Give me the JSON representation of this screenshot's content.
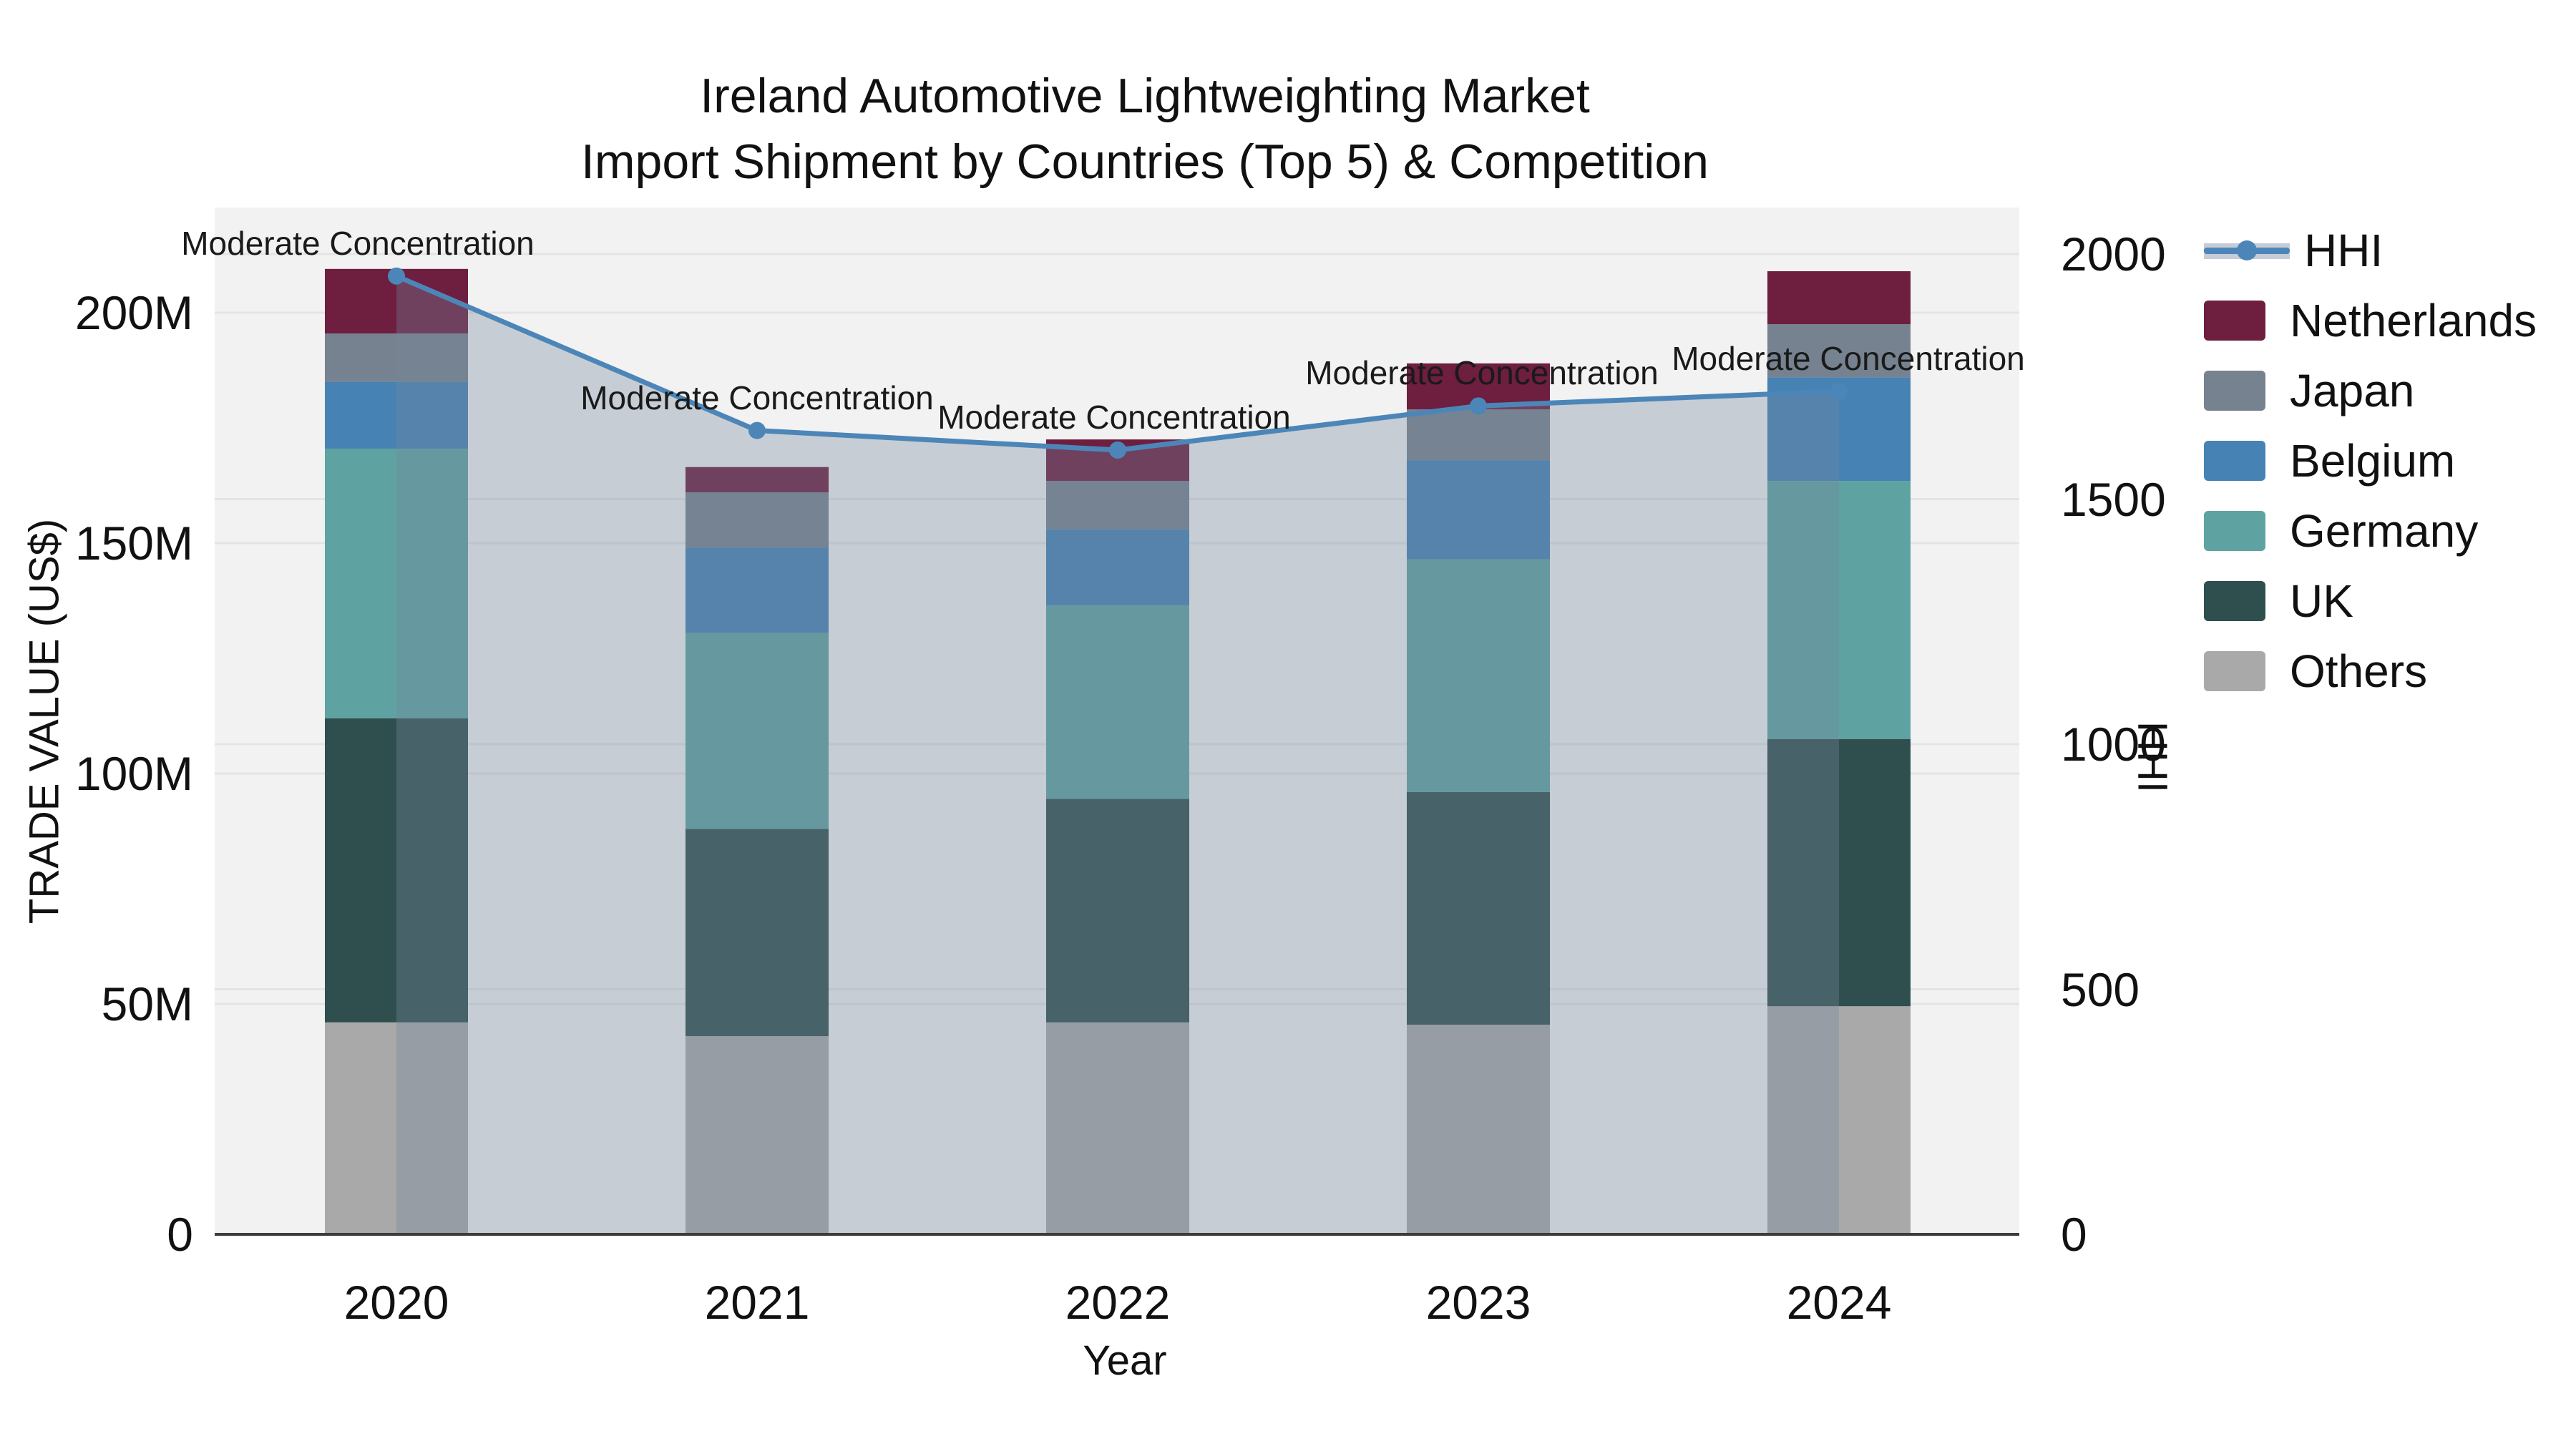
{
  "title": {
    "line1": "Ireland Automotive Lightweighting Market",
    "line2": "Import Shipment by Countries (Top 5) & Competition (HHI)"
  },
  "axes": {
    "left": {
      "label": "TRADE VALUE (US$)",
      "ticks": [
        "0",
        "50M",
        "100M",
        "150M",
        "200M"
      ],
      "tick_values": [
        0,
        50,
        100,
        150,
        200
      ]
    },
    "right": {
      "label": "HHI",
      "ticks": [
        "0",
        "500",
        "1000",
        "1500",
        "2000"
      ],
      "tick_values": [
        0,
        500,
        1000,
        1500,
        2000
      ]
    },
    "x": {
      "label": "Year",
      "ticks": [
        "2020",
        "2021",
        "2022",
        "2023",
        "2024"
      ]
    }
  },
  "legend": {
    "items": [
      {
        "label": "HHI",
        "type": "line",
        "color": "#4c86b8"
      },
      {
        "label": "Netherlands",
        "type": "patch",
        "color": "#6e1e3f"
      },
      {
        "label": "Japan",
        "type": "patch",
        "color": "#76828f"
      },
      {
        "label": "Belgium",
        "type": "patch",
        "color": "#4682b4"
      },
      {
        "label": "Germany",
        "type": "patch",
        "color": "#5ea3a2"
      },
      {
        "label": "UK",
        "type": "patch",
        "color": "#2f4f4f"
      },
      {
        "label": "Others",
        "type": "patch",
        "color": "#a9a9a9"
      }
    ]
  },
  "annotations": [
    {
      "year": "2020",
      "text": "Moderate Concentration"
    },
    {
      "year": "2021",
      "text": "Moderate Concentration"
    },
    {
      "year": "2022",
      "text": "Moderate Concentration"
    },
    {
      "year": "2023",
      "text": "Moderate Concentration"
    },
    {
      "year": "2024",
      "text": "Moderate Concentration"
    }
  ],
  "colors": {
    "plot_background": "#f2f2f2",
    "page_background": "#ffffff",
    "gridline": "#e4e4e4",
    "axis_spine": "#3c3c3c",
    "hhi_line": "#4c86b8",
    "hhi_area_fill": "rgba(116,134,154,0.34)",
    "text": "#111111"
  },
  "chart_data": {
    "type": "bar+line",
    "title": "Ireland Automotive Lightweighting Market — Import Shipment by Countries (Top 5) & Competition (HHI)",
    "categories": [
      "2020",
      "2021",
      "2022",
      "2023",
      "2024"
    ],
    "bar_unit": "M US$",
    "stack_order_bottom_to_top": [
      "Others",
      "UK",
      "Germany",
      "Belgium",
      "Japan",
      "Netherlands"
    ],
    "series": [
      {
        "name": "Others",
        "color": "#a9a9a9",
        "values": [
          46,
          43,
          46,
          45.5,
          49.5
        ]
      },
      {
        "name": "UK",
        "color": "#2f4f4f",
        "values": [
          66,
          45,
          48.5,
          50.5,
          58
        ]
      },
      {
        "name": "Germany",
        "color": "#5ea3a2",
        "values": [
          58.5,
          42.5,
          42,
          50.5,
          56
        ]
      },
      {
        "name": "Belgium",
        "color": "#4682b4",
        "values": [
          14.5,
          18.5,
          16.5,
          21.5,
          22.5
        ]
      },
      {
        "name": "Japan",
        "color": "#76828f",
        "values": [
          10.5,
          12,
          10.5,
          11,
          11.5
        ]
      },
      {
        "name": "Netherlands",
        "color": "#6e1e3f",
        "values": [
          14,
          5.5,
          9,
          10,
          11.5
        ]
      }
    ],
    "bar_totals": [
      209.5,
      166.5,
      172.5,
      189,
      209
    ],
    "line_series": {
      "name": "HHI",
      "axis": "right",
      "color": "#4c86b8",
      "area_fill": true,
      "values": [
        1955,
        1640,
        1600,
        1690,
        1720
      ]
    },
    "xlabel": "Year",
    "ylabel_left": "TRADE VALUE (US$)",
    "ylabel_right": "HHI",
    "ylim_left_millions": [
      0,
      222
    ],
    "ylim_right": [
      0,
      2095
    ],
    "grid": true,
    "legend_position": "right"
  }
}
